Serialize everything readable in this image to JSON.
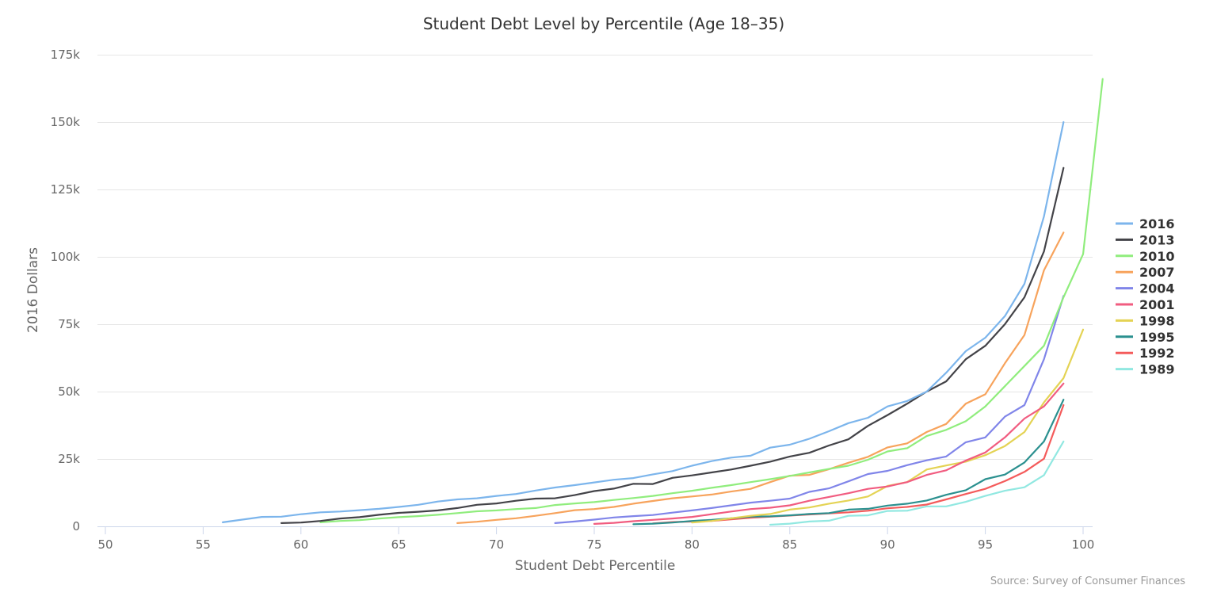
{
  "chart_data": {
    "type": "line",
    "title": "Student Debt Level by Percentile (Age 18–35)",
    "xlabel": "Student Debt Percentile",
    "ylabel": "2016 Dollars",
    "xlim": [
      50,
      100
    ],
    "ylim": [
      0,
      175000
    ],
    "x_ticks": [
      "50",
      "55",
      "60",
      "65",
      "70",
      "75",
      "80",
      "85",
      "90",
      "95",
      "100"
    ],
    "y_ticks": [
      "0",
      "25k",
      "50k",
      "75k",
      "100k",
      "125k",
      "150k",
      "175k"
    ],
    "grid": true,
    "legend_position": "right",
    "source": "Source: Survey of Consumer Finances",
    "series": [
      {
        "name": "2016",
        "color": "#7cb5ec",
        "start": 56,
        "values": [
          1500,
          2500,
          3500,
          3600,
          4500,
          5200,
          5500,
          6000,
          6500,
          7200,
          8000,
          9200,
          10000,
          10400,
          11300,
          12000,
          13300,
          14400,
          15300,
          16300,
          17300,
          17900,
          19300,
          20500,
          22500,
          24200,
          25500,
          26200,
          29200,
          30300,
          32500,
          35300,
          38300,
          40300,
          44500,
          46500,
          50000,
          57000,
          65000,
          70000,
          78000,
          90000,
          115000,
          150000
        ]
      },
      {
        "name": "2013",
        "color": "#434348",
        "start": 59,
        "values": [
          1200,
          1400,
          2000,
          2900,
          3400,
          4300,
          5000,
          5400,
          5900,
          6800,
          8000,
          8500,
          9500,
          10300,
          10400,
          11600,
          13100,
          14000,
          15800,
          15700,
          18000,
          18900,
          20000,
          21100,
          22500,
          24000,
          25900,
          27300,
          30000,
          32300,
          37300,
          41300,
          45500,
          50000,
          53800,
          62000,
          67000,
          75000,
          85000,
          102000,
          133000
        ]
      },
      {
        "name": "2010",
        "color": "#90ed7d",
        "start": 61,
        "values": [
          1500,
          2000,
          2300,
          2900,
          3400,
          3800,
          4300,
          4900,
          5600,
          5900,
          6400,
          6800,
          7900,
          8500,
          9000,
          9800,
          10500,
          11300,
          12300,
          13200,
          14300,
          15300,
          16400,
          17500,
          18700,
          20000,
          21300,
          22500,
          24700,
          27800,
          29000,
          33500,
          35800,
          39000,
          44500,
          52000,
          59500,
          67000,
          85000,
          101000,
          166000
        ]
      },
      {
        "name": "2007",
        "color": "#f7a35c",
        "start": 68,
        "values": [
          1200,
          1700,
          2400,
          3000,
          3900,
          4900,
          6000,
          6400,
          7200,
          8400,
          9400,
          10400,
          11100,
          11800,
          12900,
          13900,
          16400,
          18800,
          19100,
          21200,
          23600,
          25800,
          29300,
          30800,
          35000,
          38000,
          45500,
          49000,
          60500,
          71000,
          95000,
          109000
        ]
      },
      {
        "name": "2004",
        "color": "#8085e9",
        "start": 73,
        "values": [
          1200,
          1800,
          2500,
          3300,
          3800,
          4200,
          5100,
          5900,
          6800,
          7800,
          8800,
          9500,
          10300,
          12800,
          14100,
          16700,
          19400,
          20600,
          22700,
          24500,
          25900,
          31200,
          33000,
          40700,
          45000,
          62000,
          85500
        ]
      },
      {
        "name": "2001",
        "color": "#f15c80",
        "start": 75,
        "values": [
          900,
          1300,
          1900,
          2400,
          2900,
          3500,
          4500,
          5500,
          6400,
          6900,
          7800,
          9500,
          10900,
          12300,
          13900,
          14800,
          16400,
          19100,
          20800,
          24400,
          27400,
          33000,
          40000,
          44500,
          53000
        ]
      },
      {
        "name": "1998",
        "color": "#e4d354",
        "start": 80,
        "values": [
          1400,
          2000,
          3000,
          3900,
          4600,
          6200,
          7000,
          8400,
          9600,
          11100,
          15000,
          16400,
          21100,
          22600,
          24000,
          26400,
          29800,
          35000,
          46000,
          55000,
          73000
        ]
      },
      {
        "name": "1995",
        "color": "#2b908f",
        "start": 77,
        "values": [
          800,
          1000,
          1400,
          2000,
          2400,
          3000,
          3600,
          3700,
          4100,
          4600,
          4900,
          6200,
          6500,
          7700,
          8400,
          9600,
          11700,
          13400,
          17500,
          19200,
          23700,
          31500,
          47000
        ]
      },
      {
        "name": "1992",
        "color": "#f45b5b",
        "start": 78,
        "values": [
          1100,
          1600,
          1800,
          2000,
          2600,
          3200,
          3600,
          4000,
          4400,
          4800,
          5200,
          5800,
          6700,
          7200,
          8100,
          10000,
          12000,
          13900,
          16800,
          20200,
          25100,
          45000
        ]
      },
      {
        "name": "1989",
        "color": "#91e8e1",
        "start": 84,
        "values": [
          600,
          1000,
          1800,
          2100,
          3900,
          4100,
          5700,
          5800,
          7400,
          7400,
          9100,
          11300,
          13200,
          14500,
          19000,
          31500
        ]
      }
    ]
  }
}
